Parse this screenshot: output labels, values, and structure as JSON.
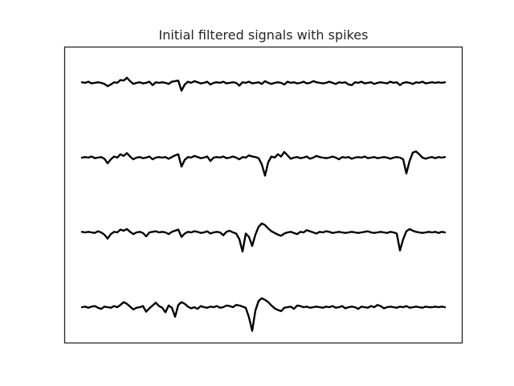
{
  "chart_data": {
    "type": "line",
    "title": "Initial filtered signals with spikes",
    "xlabel": "",
    "ylabel": "",
    "x": [
      0,
      4,
      8,
      12,
      16,
      20,
      24,
      28,
      32,
      36,
      40,
      44,
      48,
      52,
      56,
      60,
      64,
      68,
      72,
      76,
      80,
      84,
      88,
      92,
      96,
      100,
      104,
      108,
      112,
      116,
      120,
      124,
      128,
      132,
      136,
      140,
      144,
      148,
      152,
      156,
      160,
      164,
      168,
      172,
      176,
      180,
      184,
      188,
      192,
      196,
      200,
      204,
      208,
      212,
      216,
      220,
      224,
      228,
      232,
      236,
      240,
      244,
      248,
      252,
      256,
      260,
      264,
      268,
      272,
      276,
      280,
      284,
      288,
      292,
      296,
      300,
      304,
      308,
      312,
      316,
      320,
      324,
      328,
      332,
      336,
      340,
      344,
      348,
      352,
      356,
      360,
      364,
      368,
      372,
      376,
      380,
      384,
      388,
      392,
      396,
      400,
      404,
      408,
      412,
      416,
      420,
      424,
      428,
      432,
      436,
      440,
      444,
      448,
      452
    ],
    "series": [
      {
        "values": [
          0.1,
          0.0,
          0.2,
          -0.1,
          0.0,
          0.1,
          0.0,
          -0.2,
          -0.6,
          -0.3,
          0.1,
          0.0,
          0.5,
          0.4,
          0.9,
          0.3,
          -0.2,
          0.0,
          0.1,
          -0.1,
          0.0,
          0.2,
          -0.4,
          0.1,
          0.0,
          0.1,
          0.0,
          -0.2,
          0.2,
          0.3,
          0.4,
          -1.4,
          -0.3,
          0.2,
          0.0,
          0.3,
          0.1,
          -0.1,
          0.0,
          0.2,
          -0.3,
          0.0,
          0.1,
          0.0,
          0.2,
          -0.1,
          0.0,
          0.1,
          0.0,
          -0.5,
          0.1,
          0.0,
          0.2,
          -0.1,
          0.0,
          0.1,
          -0.2,
          0.3,
          0.0,
          -0.2,
          0.0,
          0.1,
          0.0,
          -0.3,
          0.2,
          0.0,
          0.1,
          -0.1,
          0.0,
          0.2,
          -0.1,
          0.0,
          0.3,
          0.1,
          0.0,
          -0.1,
          0.0,
          0.2,
          0.0,
          -0.2,
          0.1,
          0.0,
          0.1,
          -0.3,
          -0.4,
          0.1,
          0.0,
          0.2,
          -0.1,
          0.0,
          0.1,
          -0.2,
          0.0,
          0.1,
          0.0,
          -0.1,
          0.2,
          0.0,
          0.1,
          -0.4,
          0.0,
          0.1,
          0.0,
          -0.2,
          0.1,
          0.0,
          0.2,
          -0.1,
          0.0,
          0.1,
          0.0,
          0.1,
          0.0,
          0.1
        ]
      },
      {
        "values": [
          0.0,
          0.1,
          0.0,
          0.2,
          -0.1,
          0.0,
          0.1,
          -0.2,
          -1.0,
          -0.3,
          0.2,
          0.0,
          0.6,
          0.3,
          0.8,
          0.2,
          -0.3,
          0.0,
          0.1,
          -0.1,
          0.0,
          0.2,
          -0.3,
          0.0,
          0.1,
          0.0,
          0.1,
          -0.2,
          0.1,
          0.4,
          0.6,
          -1.6,
          -0.4,
          0.1,
          0.0,
          0.3,
          0.1,
          -0.1,
          0.0,
          0.2,
          -0.6,
          0.0,
          0.1,
          0.0,
          0.2,
          -0.1,
          0.0,
          0.2,
          0.0,
          -0.3,
          0.1,
          0.0,
          0.4,
          0.2,
          0.1,
          -0.1,
          -1.2,
          -3.2,
          -0.8,
          0.2,
          0.0,
          0.6,
          0.2,
          1.0,
          0.4,
          -0.2,
          0.0,
          0.1,
          -0.1,
          0.0,
          0.2,
          -0.2,
          0.0,
          0.3,
          0.1,
          0.0,
          -0.1,
          0.0,
          0.2,
          0.0,
          -0.3,
          0.1,
          0.0,
          0.1,
          -0.2,
          0.0,
          0.1,
          0.0,
          0.2,
          -0.1,
          0.0,
          0.1,
          -0.1,
          0.0,
          0.1,
          0.0,
          -0.2,
          0.0,
          0.1,
          0.0,
          -0.3,
          -2.8,
          -0.6,
          0.9,
          1.1,
          0.6,
          0.0,
          -0.2,
          0.0,
          0.1,
          -0.1,
          0.1,
          0.0,
          0.1
        ]
      },
      {
        "values": [
          0.1,
          0.0,
          0.1,
          0.0,
          -0.1,
          0.2,
          0.0,
          -0.4,
          -1.1,
          -0.3,
          0.1,
          0.0,
          0.5,
          0.3,
          0.6,
          0.1,
          -0.3,
          0.0,
          0.1,
          -0.1,
          -0.7,
          0.0,
          0.1,
          0.2,
          0.0,
          0.1,
          0.0,
          -0.3,
          0.1,
          0.3,
          0.5,
          -0.8,
          -0.2,
          0.1,
          0.0,
          0.2,
          0.1,
          -0.1,
          0.0,
          0.2,
          -0.2,
          0.0,
          0.1,
          0.0,
          -0.5,
          0.1,
          0.3,
          0.0,
          -0.2,
          -1.2,
          -3.4,
          -0.2,
          -0.8,
          -2.4,
          -0.4,
          1.0,
          1.6,
          1.3,
          0.7,
          0.2,
          -0.1,
          -0.4,
          -0.6,
          -0.2,
          0.0,
          0.1,
          -0.1,
          -0.3,
          0.1,
          0.0,
          0.4,
          0.2,
          0.0,
          -0.2,
          0.1,
          0.0,
          0.2,
          0.1,
          -0.1,
          0.0,
          0.1,
          0.0,
          -0.1,
          0.0,
          0.1,
          0.0,
          -0.1,
          0.0,
          0.1,
          0.2,
          0.0,
          -0.1,
          0.0,
          0.1,
          0.0,
          -0.1,
          0.1,
          0.0,
          -0.2,
          -3.2,
          -1.2,
          0.2,
          0.6,
          0.3,
          0.1,
          0.0,
          -0.1,
          0.0,
          0.1,
          0.0,
          0.1,
          -0.1,
          0.1,
          0.0
        ]
      },
      {
        "values": [
          0.0,
          0.1,
          -0.1,
          0.1,
          0.2,
          -0.1,
          -0.3,
          0.1,
          0.0,
          -0.1,
          0.2,
          0.0,
          0.4,
          0.9,
          0.6,
          0.1,
          -0.4,
          -0.1,
          0.0,
          0.2,
          -0.8,
          -0.2,
          0.3,
          0.8,
          0.2,
          -0.1,
          -0.9,
          0.3,
          -0.1,
          -1.7,
          0.4,
          0.9,
          0.6,
          0.1,
          -0.2,
          0.0,
          -0.3,
          0.2,
          0.0,
          -0.1,
          0.1,
          0.0,
          0.2,
          -0.1,
          0.0,
          0.3,
          0.2,
          0.0,
          0.4,
          0.3,
          0.1,
          -0.1,
          -1.8,
          -4.2,
          -0.6,
          1.1,
          1.6,
          1.3,
          0.9,
          0.3,
          -0.2,
          -0.5,
          -0.7,
          -0.1,
          0.0,
          0.1,
          -0.3,
          0.3,
          0.2,
          0.0,
          0.1,
          -0.1,
          0.0,
          0.1,
          0.0,
          -0.1,
          0.1,
          0.0,
          0.2,
          -0.1,
          0.0,
          0.2,
          -0.2,
          0.0,
          0.1,
          0.0,
          -0.3,
          0.1,
          0.0,
          -0.1,
          0.2,
          0.0,
          0.4,
          0.2,
          -0.2,
          0.0,
          0.1,
          0.0,
          -0.1,
          0.1,
          0.0,
          0.2,
          -0.1,
          0.0,
          0.1,
          0.0,
          -0.1,
          0.1,
          0.0,
          0.0,
          0.1,
          0.0,
          0.1,
          0.0
        ]
      }
    ],
    "xlim": [
      0,
      452
    ],
    "ylim": [
      -5,
      5
    ],
    "grid": false,
    "legend": false,
    "axes_ticks": false,
    "line_color": "#000000",
    "frame_color": "#262626",
    "title_color": "#262626",
    "background": "#ffffff"
  }
}
